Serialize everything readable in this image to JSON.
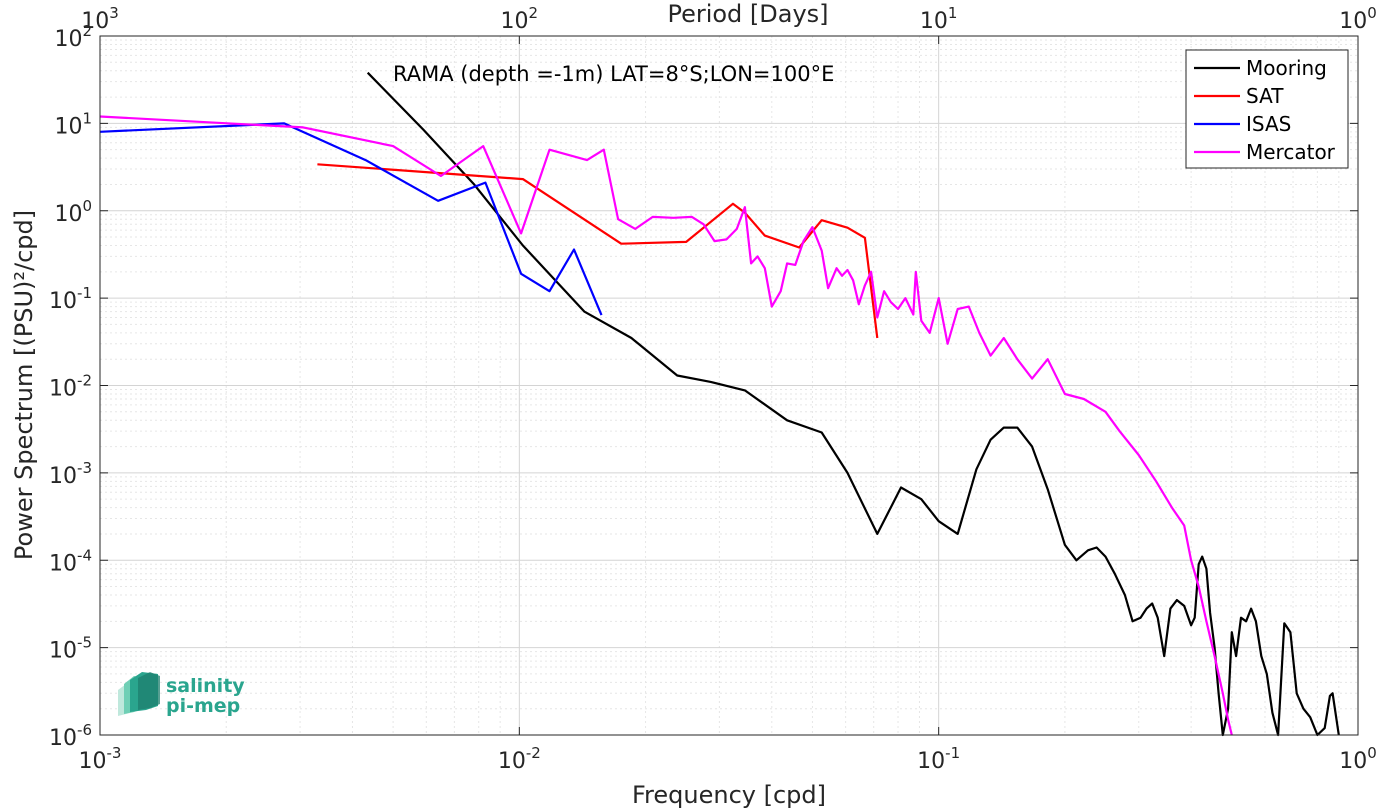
{
  "chart_data": {
    "type": "line",
    "xscale": "log",
    "yscale": "log",
    "xlim": [
      0.001,
      1
    ],
    "ylim": [
      1e-06,
      100
    ],
    "xlabel": "Frequency [cpd]",
    "ylabel": "Power Spectrum [(PSU)²/cpd]",
    "top_axis_label": "Period [Days]",
    "annotation": "RAMA (depth =-1m) LAT=8°S;LON=100°E",
    "grid": true,
    "legend_position": "top-right",
    "x_ticks": [
      {
        "value": 0.001,
        "base": "10",
        "exp": "-3"
      },
      {
        "value": 0.01,
        "base": "10",
        "exp": "-2"
      },
      {
        "value": 0.1,
        "base": "10",
        "exp": "-1"
      },
      {
        "value": 1,
        "base": "10",
        "exp": "0"
      }
    ],
    "top_ticks": [
      {
        "value": 0.001,
        "base": "10",
        "exp": "3"
      },
      {
        "value": 0.01,
        "base": "10",
        "exp": "2"
      },
      {
        "value": 0.1,
        "base": "10",
        "exp": "1"
      },
      {
        "value": 1,
        "base": "10",
        "exp": "0"
      }
    ],
    "y_ticks": [
      {
        "value": 100,
        "base": "10",
        "exp": "2"
      },
      {
        "value": 10,
        "base": "10",
        "exp": "1"
      },
      {
        "value": 1,
        "base": "10",
        "exp": "0"
      },
      {
        "value": 0.1,
        "base": "10",
        "exp": "-1"
      },
      {
        "value": 0.01,
        "base": "10",
        "exp": "-2"
      },
      {
        "value": 0.001,
        "base": "10",
        "exp": "-3"
      },
      {
        "value": 0.0001,
        "base": "10",
        "exp": "-4"
      },
      {
        "value": 1e-05,
        "base": "10",
        "exp": "-5"
      },
      {
        "value": 1e-06,
        "base": "10",
        "exp": "-6"
      }
    ],
    "series": [
      {
        "name": "Mooring",
        "color": "#000000",
        "points": [
          [
            0.00435,
            38
          ],
          [
            0.0059,
            8.5
          ],
          [
            0.0078,
            2.0
          ],
          [
            0.0102,
            0.4
          ],
          [
            0.0143,
            0.07
          ],
          [
            0.0185,
            0.035
          ],
          [
            0.0238,
            0.013
          ],
          [
            0.0286,
            0.011
          ],
          [
            0.0345,
            0.0088
          ],
          [
            0.0435,
            0.004
          ],
          [
            0.0526,
            0.0029
          ],
          [
            0.0606,
            0.001
          ],
          [
            0.0714,
            0.0002
          ],
          [
            0.0813,
            0.00068
          ],
          [
            0.0909,
            0.0005
          ],
          [
            0.1,
            0.00028
          ],
          [
            0.111,
            0.0002
          ],
          [
            0.123,
            0.0011
          ],
          [
            0.133,
            0.0024
          ],
          [
            0.143,
            0.0033
          ],
          [
            0.154,
            0.0033
          ],
          [
            0.167,
            0.002
          ],
          [
            0.182,
            0.00065
          ],
          [
            0.2,
            0.00015
          ],
          [
            0.213,
            0.0001
          ],
          [
            0.227,
            0.00013
          ],
          [
            0.238,
            0.00014
          ],
          [
            0.25,
            0.00011
          ],
          [
            0.263,
            7e-05
          ],
          [
            0.278,
            4e-05
          ],
          [
            0.29,
            2e-05
          ],
          [
            0.303,
            2.2e-05
          ],
          [
            0.313,
            2.8e-05
          ],
          [
            0.323,
            3.2e-05
          ],
          [
            0.333,
            2.2e-05
          ],
          [
            0.345,
            8e-06
          ],
          [
            0.357,
            2.8e-05
          ],
          [
            0.37,
            3.5e-05
          ],
          [
            0.385,
            3e-05
          ],
          [
            0.4,
            1.8e-05
          ],
          [
            0.408,
            2.2e-05
          ],
          [
            0.417,
            9e-05
          ],
          [
            0.425,
            0.00011
          ],
          [
            0.435,
            8e-05
          ],
          [
            0.444,
            2.5e-05
          ],
          [
            0.455,
            1e-05
          ],
          [
            0.465,
            3e-06
          ],
          [
            0.476,
            8e-07
          ],
          [
            0.49,
            2e-06
          ],
          [
            0.5,
            1.5e-05
          ],
          [
            0.512,
            8e-06
          ],
          [
            0.526,
            2.2e-05
          ],
          [
            0.541,
            2e-05
          ],
          [
            0.556,
            2.8e-05
          ],
          [
            0.571,
            2e-05
          ],
          [
            0.588,
            8e-06
          ],
          [
            0.606,
            5e-06
          ],
          [
            0.625,
            1.8e-06
          ],
          [
            0.645,
            8e-07
          ],
          [
            0.667,
            1.9e-05
          ],
          [
            0.69,
            1.5e-05
          ],
          [
            0.714,
            3e-06
          ],
          [
            0.741,
            2e-06
          ],
          [
            0.769,
            1.6e-06
          ],
          [
            0.8,
            6e-07
          ],
          [
            0.833,
            1.2e-06
          ],
          [
            0.857,
            2.8e-06
          ],
          [
            0.87,
            3e-06
          ],
          [
            0.9,
            6e-07
          ]
        ]
      },
      {
        "name": "SAT",
        "color": "#ff0000",
        "points": [
          [
            0.0033,
            3.4
          ],
          [
            0.0102,
            2.3
          ],
          [
            0.0175,
            0.42
          ],
          [
            0.025,
            0.44
          ],
          [
            0.0323,
            1.2
          ],
          [
            0.0345,
            0.95
          ],
          [
            0.0385,
            0.52
          ],
          [
            0.0465,
            0.38
          ],
          [
            0.0526,
            0.78
          ],
          [
            0.0606,
            0.64
          ],
          [
            0.0667,
            0.49
          ],
          [
            0.0714,
            0.035
          ]
        ]
      },
      {
        "name": "ISAS",
        "color": "#0000ff",
        "points": [
          [
            0.001,
            8
          ],
          [
            0.00275,
            10
          ],
          [
            0.0043,
            3.8
          ],
          [
            0.0064,
            1.3
          ],
          [
            0.0083,
            2.1
          ],
          [
            0.0101,
            0.19
          ],
          [
            0.0118,
            0.12
          ],
          [
            0.0135,
            0.36
          ],
          [
            0.0157,
            0.064
          ]
        ]
      },
      {
        "name": "Mercator",
        "color": "#ff00ff",
        "points": [
          [
            0.001,
            12
          ],
          [
            0.00305,
            9
          ],
          [
            0.005,
            5.5
          ],
          [
            0.0065,
            2.5
          ],
          [
            0.0082,
            5.5
          ],
          [
            0.0101,
            0.55
          ],
          [
            0.0118,
            5.0
          ],
          [
            0.0145,
            3.8
          ],
          [
            0.0159,
            5.0
          ],
          [
            0.0172,
            0.8
          ],
          [
            0.0189,
            0.62
          ],
          [
            0.0208,
            0.85
          ],
          [
            0.0233,
            0.83
          ],
          [
            0.0258,
            0.85
          ],
          [
            0.0275,
            0.7
          ],
          [
            0.0292,
            0.45
          ],
          [
            0.0312,
            0.47
          ],
          [
            0.033,
            0.62
          ],
          [
            0.0345,
            1.1
          ],
          [
            0.0357,
            0.25
          ],
          [
            0.037,
            0.3
          ],
          [
            0.0385,
            0.22
          ],
          [
            0.04,
            0.08
          ],
          [
            0.042,
            0.12
          ],
          [
            0.0435,
            0.25
          ],
          [
            0.0455,
            0.24
          ],
          [
            0.0476,
            0.45
          ],
          [
            0.05,
            0.65
          ],
          [
            0.0526,
            0.35
          ],
          [
            0.0545,
            0.13
          ],
          [
            0.0571,
            0.22
          ],
          [
            0.0588,
            0.18
          ],
          [
            0.0606,
            0.21
          ],
          [
            0.0625,
            0.16
          ],
          [
            0.0645,
            0.085
          ],
          [
            0.0667,
            0.14
          ],
          [
            0.069,
            0.2
          ],
          [
            0.0714,
            0.06
          ],
          [
            0.0741,
            0.12
          ],
          [
            0.0769,
            0.09
          ],
          [
            0.08,
            0.075
          ],
          [
            0.0833,
            0.1
          ],
          [
            0.087,
            0.065
          ],
          [
            0.0882,
            0.2
          ],
          [
            0.0909,
            0.055
          ],
          [
            0.0952,
            0.04
          ],
          [
            0.1,
            0.1
          ],
          [
            0.105,
            0.03
          ],
          [
            0.111,
            0.075
          ],
          [
            0.118,
            0.08
          ],
          [
            0.125,
            0.04
          ],
          [
            0.133,
            0.022
          ],
          [
            0.143,
            0.035
          ],
          [
            0.154,
            0.02
          ],
          [
            0.167,
            0.012
          ],
          [
            0.182,
            0.02
          ],
          [
            0.2,
            0.008
          ],
          [
            0.222,
            0.007
          ],
          [
            0.25,
            0.005
          ],
          [
            0.27,
            0.003
          ],
          [
            0.3,
            0.0016
          ],
          [
            0.33,
            0.0008
          ],
          [
            0.36,
            0.0004
          ],
          [
            0.385,
            0.00025
          ],
          [
            0.4,
            0.0001
          ],
          [
            0.417,
            5e-05
          ],
          [
            0.435,
            2e-05
          ],
          [
            0.455,
            8e-06
          ],
          [
            0.476,
            3e-06
          ],
          [
            0.49,
            1.5e-06
          ],
          [
            0.5,
            8e-07
          ]
        ]
      }
    ]
  },
  "logo": {
    "line1": "salinity",
    "line2": "pi-mep"
  }
}
